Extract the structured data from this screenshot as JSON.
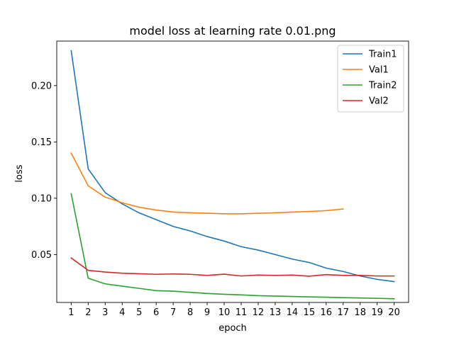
{
  "chart_data": {
    "type": "line",
    "title": "model loss at learning rate 0.01.png",
    "xlabel": "epoch",
    "ylabel": "loss",
    "xlim": [
      0.15,
      20.85
    ],
    "ylim": [
      0.0075,
      0.2395
    ],
    "x_ticks": [
      1,
      2,
      3,
      4,
      5,
      6,
      7,
      8,
      9,
      10,
      11,
      12,
      13,
      14,
      15,
      16,
      17,
      18,
      19,
      20
    ],
    "y_ticks": [
      0.05,
      0.1,
      0.15,
      0.2
    ],
    "y_tick_labels": [
      "0.05",
      "0.10",
      "0.15",
      "0.20"
    ],
    "grid": false,
    "legend_position": "top-right",
    "series": [
      {
        "name": "Train1",
        "color": "#1f77b4",
        "x": [
          1,
          2,
          3,
          4,
          5,
          6,
          7,
          8,
          9,
          10,
          11,
          12,
          13,
          14,
          15,
          16,
          17,
          18,
          19,
          20
        ],
        "values": [
          0.231,
          0.126,
          0.105,
          0.095,
          0.087,
          0.081,
          0.075,
          0.071,
          0.066,
          0.062,
          0.057,
          0.054,
          0.05,
          0.046,
          0.043,
          0.038,
          0.035,
          0.031,
          0.028,
          0.026
        ]
      },
      {
        "name": "Val1",
        "color": "#ff7f0e",
        "x": [
          1,
          2,
          3,
          4,
          5,
          6,
          7,
          8,
          9,
          10,
          11,
          12,
          13,
          14,
          15,
          16,
          17
        ],
        "values": [
          0.14,
          0.111,
          0.101,
          0.096,
          0.092,
          0.0895,
          0.0878,
          0.0871,
          0.0867,
          0.0862,
          0.0862,
          0.0866,
          0.0871,
          0.0877,
          0.0883,
          0.089,
          0.0905
        ]
      },
      {
        "name": "Train2",
        "color": "#2ca02c",
        "x": [
          1,
          2,
          3,
          4,
          5,
          6,
          7,
          8,
          9,
          10,
          11,
          12,
          13,
          14,
          15,
          16,
          17,
          18,
          19,
          20
        ],
        "values": [
          0.104,
          0.029,
          0.024,
          0.022,
          0.02,
          0.018,
          0.0175,
          0.0165,
          0.0155,
          0.0148,
          0.0142,
          0.0135,
          0.0132,
          0.0128,
          0.0124,
          0.0122,
          0.0118,
          0.0115,
          0.0112,
          0.0108
        ]
      },
      {
        "name": "Val2",
        "color": "#d62728",
        "x": [
          1,
          2,
          3,
          4,
          5,
          6,
          7,
          8,
          9,
          10,
          11,
          12,
          13,
          14,
          15,
          16,
          17,
          18,
          19,
          20
        ],
        "values": [
          0.047,
          0.036,
          0.0345,
          0.0335,
          0.033,
          0.0325,
          0.0328,
          0.0325,
          0.0315,
          0.0326,
          0.031,
          0.0318,
          0.0315,
          0.0318,
          0.0308,
          0.0322,
          0.0315,
          0.0315,
          0.031,
          0.031
        ]
      }
    ]
  }
}
